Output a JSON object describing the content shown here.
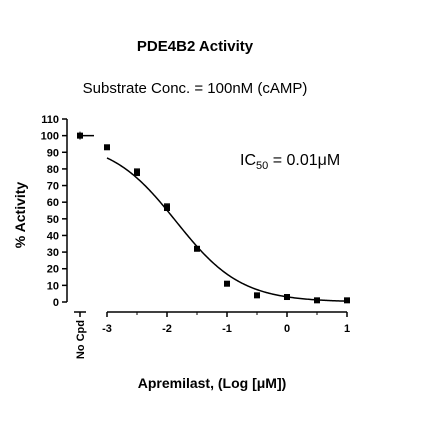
{
  "chart_data": {
    "type": "scatter",
    "title": "PDE4B2 Activity",
    "subtitle": "Substrate Conc. = 100nM (cAMP)",
    "xlabel": "Apremilast, (Log [μM])",
    "ylabel": "% Activity",
    "annotation": {
      "prefix": "IC",
      "subscript": "50",
      "suffix": " = 0.01μM"
    },
    "xlim": [
      -3,
      1
    ],
    "ylim": [
      0,
      110
    ],
    "x_ticks": [
      "-3",
      "-2",
      "-1",
      "0",
      "1"
    ],
    "y_ticks": [
      "0",
      "10",
      "20",
      "30",
      "40",
      "50",
      "60",
      "70",
      "80",
      "90",
      "100",
      "110"
    ],
    "control": {
      "label": "No Cpd",
      "value": 100
    },
    "grid": false,
    "series": [
      {
        "x": [
          -3.0,
          -2.5,
          -2.0,
          -1.5,
          -1.0,
          -0.5,
          0.0,
          0.5,
          1.0
        ],
        "y": [
          93,
          78,
          57,
          32,
          11,
          4,
          3,
          1,
          1
        ],
        "err": [
          1,
          2,
          2,
          1,
          1,
          1,
          1,
          0.5,
          0.5
        ]
      }
    ],
    "fit": {
      "top": 97,
      "bottom": 0,
      "logIC50": -1.85,
      "hill": 0.8
    }
  }
}
